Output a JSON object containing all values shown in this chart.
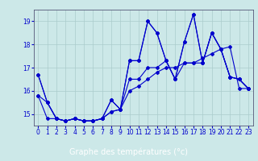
{
  "xlabel": "Graphe des températures (°c)",
  "background_color": "#cce8e8",
  "xlabel_bg_color": "#2222aa",
  "xlabel_text_color": "#ffffff",
  "grid_color": "#aacccc",
  "line_color": "#0000cc",
  "spine_color": "#555577",
  "xlim": [
    -0.5,
    23.5
  ],
  "ylim": [
    14.5,
    19.5
  ],
  "yticks": [
    15,
    16,
    17,
    18,
    19
  ],
  "xticks": [
    0,
    1,
    2,
    3,
    4,
    5,
    6,
    7,
    8,
    9,
    10,
    11,
    12,
    13,
    14,
    15,
    16,
    17,
    18,
    19,
    20,
    21,
    22,
    23
  ],
  "series": [
    [
      16.7,
      15.5,
      14.8,
      14.7,
      14.8,
      14.7,
      14.7,
      14.8,
      15.6,
      15.2,
      17.3,
      17.3,
      19.0,
      18.5,
      17.3,
      16.5,
      18.1,
      19.3,
      17.2,
      18.5,
      17.8,
      16.6,
      16.5,
      16.1
    ],
    [
      16.7,
      15.5,
      14.8,
      14.7,
      14.8,
      14.7,
      14.7,
      14.8,
      15.6,
      15.2,
      17.3,
      17.3,
      19.0,
      18.5,
      17.3,
      16.5,
      18.1,
      19.3,
      17.2,
      18.5,
      17.8,
      16.6,
      16.5,
      16.1
    ],
    [
      15.8,
      15.5,
      14.8,
      14.7,
      14.8,
      14.7,
      14.7,
      14.8,
      15.1,
      15.2,
      16.5,
      16.5,
      17.0,
      17.0,
      17.3,
      16.5,
      17.2,
      17.2,
      17.2,
      18.5,
      17.8,
      16.6,
      16.5,
      16.1
    ],
    [
      15.8,
      14.8,
      14.8,
      14.7,
      14.8,
      14.7,
      14.7,
      14.8,
      15.1,
      15.2,
      16.0,
      16.2,
      16.5,
      16.8,
      17.0,
      17.0,
      17.2,
      17.2,
      17.4,
      17.6,
      17.8,
      17.9,
      16.1,
      16.1
    ]
  ],
  "marker": "D",
  "markersize": 2.0,
  "linewidth": 0.8,
  "tick_fontsize": 5.5,
  "xlabel_fontsize": 7.0
}
